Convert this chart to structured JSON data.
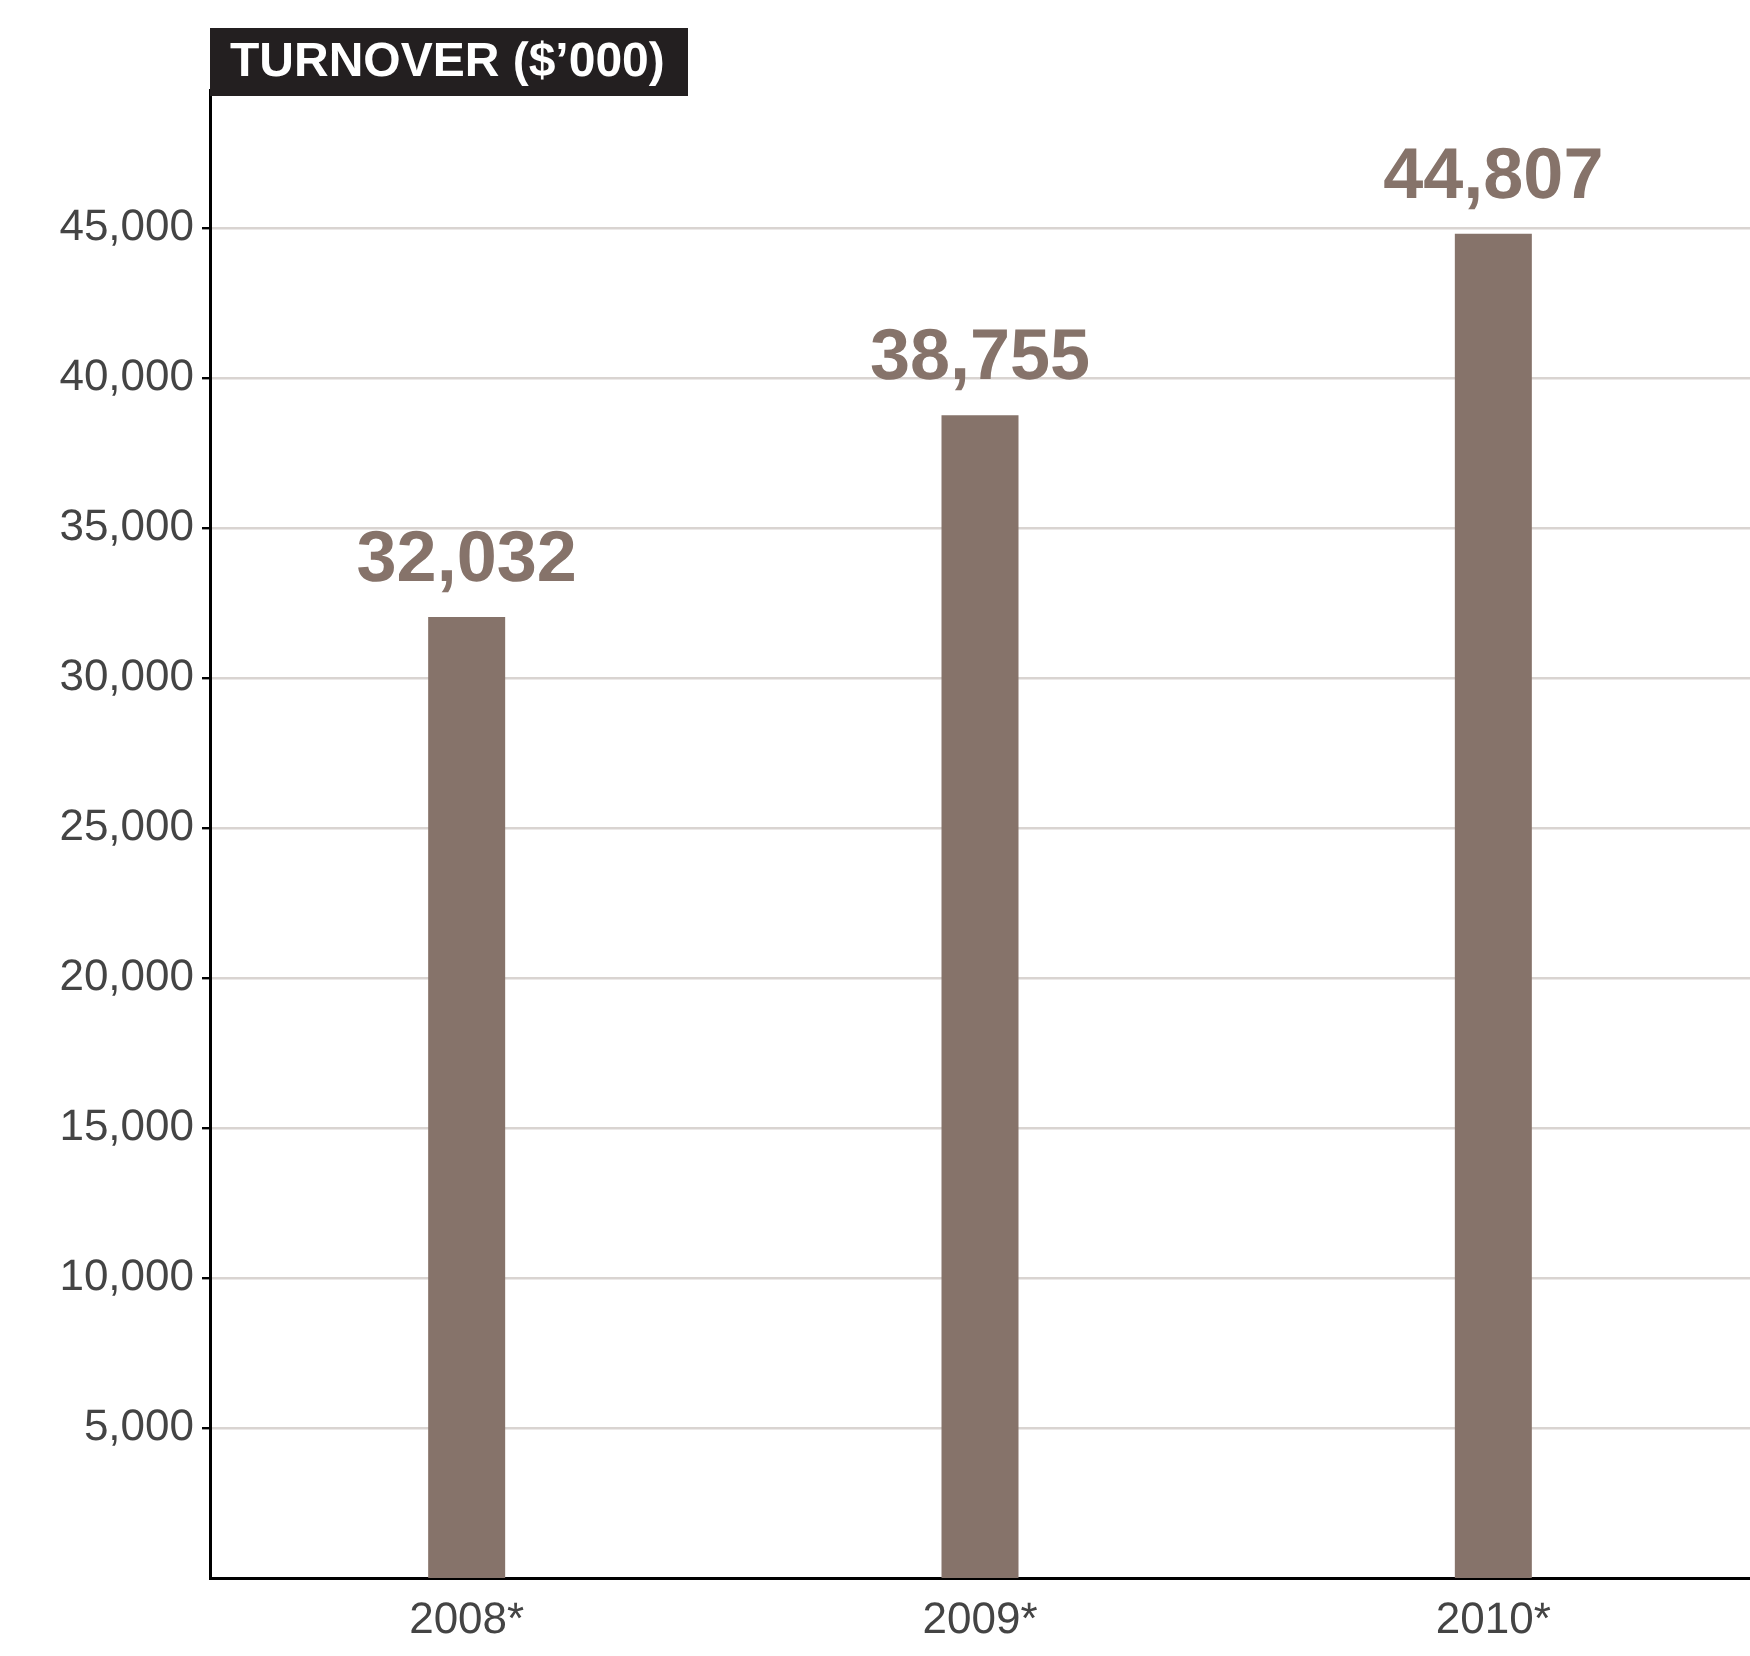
{
  "chart_data": {
    "type": "bar",
    "title": "TURNOVER ($’000)",
    "categories": [
      "2008*",
      "2009*",
      "2010*"
    ],
    "values": [
      32032,
      38755,
      44807
    ],
    "value_labels": [
      "32,032",
      "38,755",
      "44,807"
    ],
    "color": "#86736a",
    "ylim": [
      0,
      49600
    ],
    "yticks": [
      {
        "value": 5000,
        "label": "5,000"
      },
      {
        "value": 10000,
        "label": "10,000"
      },
      {
        "value": 15000,
        "label": "15,000"
      },
      {
        "value": 20000,
        "label": "20,000"
      },
      {
        "value": 25000,
        "label": "25,000"
      },
      {
        "value": 30000,
        "label": "30,000"
      },
      {
        "value": 35000,
        "label": "35,000"
      },
      {
        "value": 40000,
        "label": "40,000"
      },
      {
        "value": 45000,
        "label": "45,000"
      }
    ],
    "grid": "y"
  }
}
